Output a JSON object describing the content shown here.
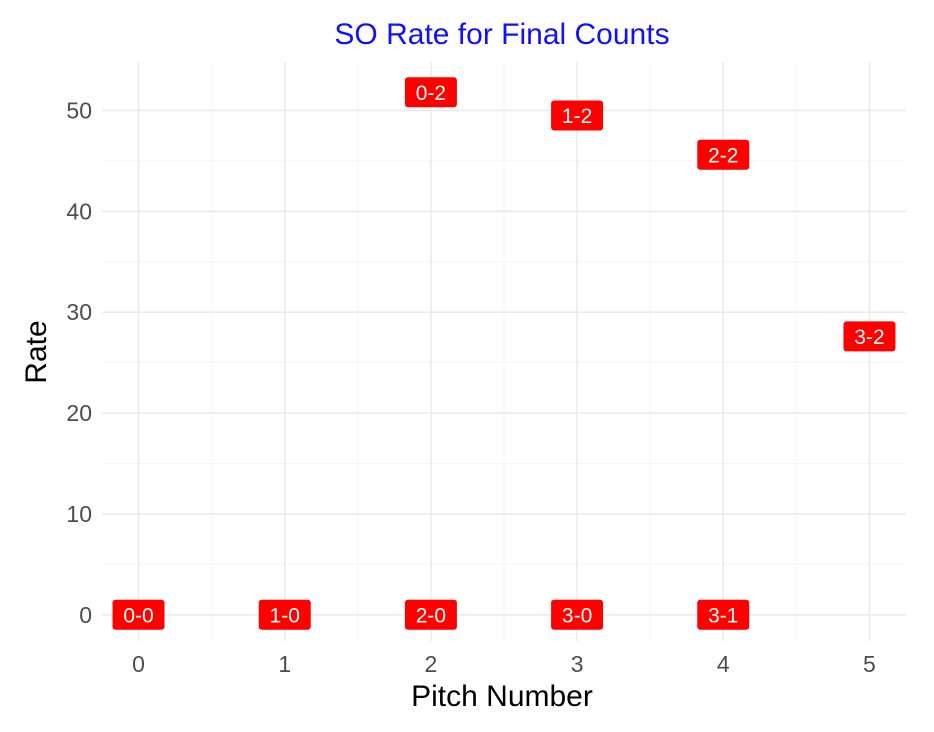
{
  "chart_data": {
    "type": "scatter",
    "title": "SO Rate for Final Counts",
    "xlabel": "Pitch Number",
    "ylabel": "Rate",
    "xlim": [
      -0.25,
      5.25
    ],
    "ylim": [
      -2.6,
      54.8
    ],
    "x_ticks": [
      0,
      1,
      2,
      3,
      4,
      5
    ],
    "y_ticks": [
      0,
      10,
      20,
      30,
      40,
      50
    ],
    "grid": true,
    "legend": "none",
    "point_style": "label",
    "label_fill": "#ff0000",
    "label_text_color": "#ffffff",
    "title_color": "#0000ff",
    "points": [
      {
        "label": "0-0",
        "x": 0,
        "y": 0
      },
      {
        "label": "1-0",
        "x": 1,
        "y": 0
      },
      {
        "label": "2-0",
        "x": 2,
        "y": 0
      },
      {
        "label": "0-2",
        "x": 2,
        "y": 51.8
      },
      {
        "label": "3-0",
        "x": 3,
        "y": 0
      },
      {
        "label": "1-2",
        "x": 3,
        "y": 49.5
      },
      {
        "label": "3-1",
        "x": 4,
        "y": 0
      },
      {
        "label": "2-2",
        "x": 4,
        "y": 45.6
      },
      {
        "label": "3-2",
        "x": 5,
        "y": 27.6
      }
    ]
  }
}
